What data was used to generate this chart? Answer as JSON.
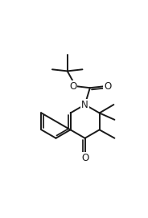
{
  "bg_color": "#ffffff",
  "line_color": "#1a1a1a",
  "lw": 1.4,
  "figsize": [
    1.84,
    2.71
  ],
  "dpi": 100,
  "xlim": [
    0.0,
    1.0
  ],
  "ylim": [
    0.0,
    1.0
  ]
}
